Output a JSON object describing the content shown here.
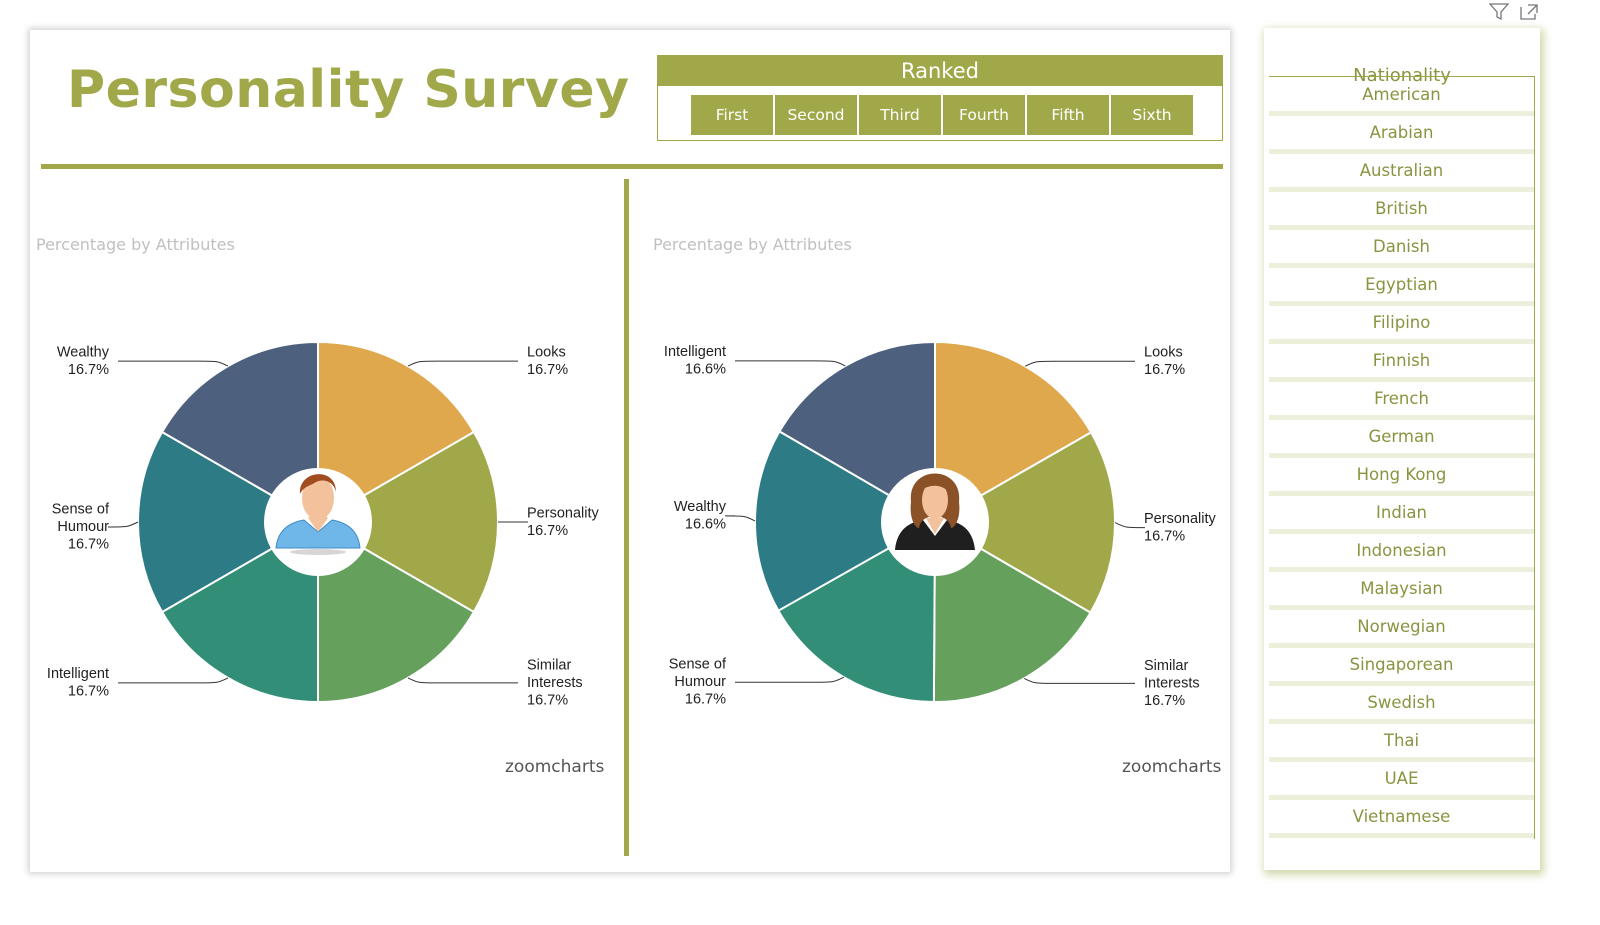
{
  "dashboard": {
    "title": "Personality Survey",
    "ranked": {
      "header": "Ranked",
      "options": [
        "First",
        "Second",
        "Third",
        "Fourth",
        "Fifth",
        "Sixth"
      ]
    }
  },
  "colors": {
    "accent": "#a0a84a",
    "slice_orange": "#e0a84c",
    "slice_olive": "#a0a84a",
    "slice_lightgreen": "#65a15d",
    "slice_green": "#328e76",
    "slice_teal": "#2d7b84",
    "slice_navy": "#4d617e"
  },
  "logo_text": "zoomcharts",
  "toolbar_icons": [
    "filter-icon",
    "focus-mode-icon"
  ],
  "slicer": {
    "title": "Nationality",
    "items": [
      "American",
      "Arabian",
      "Australian",
      "British",
      "Danish",
      "Egyptian",
      "Filipino",
      "Finnish",
      "French",
      "German",
      "Hong Kong",
      "Indian",
      "Indonesian",
      "Malaysian",
      "Norwegian",
      "Singaporean",
      "Swedish",
      "Thai",
      "UAE",
      "Vietnamese"
    ]
  },
  "chart_data": [
    {
      "type": "pie",
      "title": "Percentage by Attributes",
      "center_icon": "male-avatar-icon",
      "slices": [
        {
          "label": "Looks",
          "value_label": "16.7%",
          "value": 16.7,
          "color": "#e0a84c"
        },
        {
          "label": "Personality",
          "value_label": "16.7%",
          "value": 16.7,
          "color": "#a0a84a"
        },
        {
          "label": "Similar Interests",
          "value_label": "16.7%",
          "value": 16.7,
          "color": "#65a15d"
        },
        {
          "label": "Intelligent",
          "value_label": "16.7%",
          "value": 16.7,
          "color": "#328e76"
        },
        {
          "label": "Sense of Humour",
          "value_label": "16.7%",
          "value": 16.7,
          "color": "#2d7b84"
        },
        {
          "label": "Wealthy",
          "value_label": "16.7%",
          "value": 16.7,
          "color": "#4d617e"
        }
      ]
    },
    {
      "type": "pie",
      "title": "Percentage by Attributes",
      "center_icon": "female-avatar-icon",
      "slices": [
        {
          "label": "Looks",
          "value_label": "16.7%",
          "value": 16.7,
          "color": "#e0a84c"
        },
        {
          "label": "Personality",
          "value_label": "16.7%",
          "value": 16.7,
          "color": "#a0a84a"
        },
        {
          "label": "Similar Interests",
          "value_label": "16.7%",
          "value": 16.7,
          "color": "#65a15d"
        },
        {
          "label": "Sense of Humour",
          "value_label": "16.7%",
          "value": 16.7,
          "color": "#328e76"
        },
        {
          "label": "Wealthy",
          "value_label": "16.6%",
          "value": 16.6,
          "color": "#2d7b84"
        },
        {
          "label": "Intelligent",
          "value_label": "16.6%",
          "value": 16.6,
          "color": "#4d617e"
        }
      ]
    }
  ]
}
